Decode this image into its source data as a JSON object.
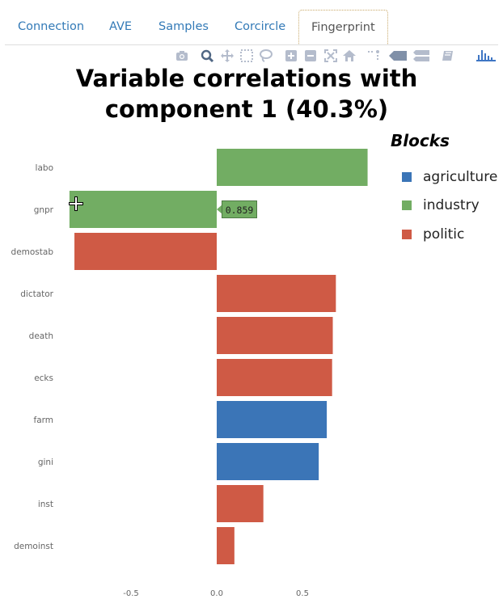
{
  "tabs": [
    {
      "label": "Connection",
      "active": false
    },
    {
      "label": "AVE",
      "active": false
    },
    {
      "label": "Samples",
      "active": false
    },
    {
      "label": "Corcircle",
      "active": false
    },
    {
      "label": "Fingerprint",
      "active": true
    }
  ],
  "modebar": {
    "icons": [
      "camera-icon",
      "zoom-icon",
      "pan-icon",
      "box-select-icon",
      "lasso-icon",
      "zoom-in-icon",
      "zoom-out-icon",
      "autoscale-icon",
      "reset-axes-icon",
      "spike-lines-icon",
      "hover-closest-icon",
      "hover-compare-icon",
      "plotly-edit-icon",
      "plotly-logo-icon"
    ]
  },
  "chart": {
    "title_line1": "Variable correlations with",
    "title_line2": "component 1 (40.3%)",
    "legend_title": "Blocks",
    "legend": [
      {
        "name": "agriculture",
        "color": "#3b75b7"
      },
      {
        "name": "industry",
        "color": "#72ad63"
      },
      {
        "name": "politic",
        "color": "#cf5a45"
      }
    ],
    "hover_label": "0.859"
  },
  "chart_data": {
    "type": "bar",
    "orientation": "horizontal",
    "title": "Variable correlations with component 1 (40.3%)",
    "categories": [
      "labo",
      "gnpr",
      "demostab",
      "dictator",
      "death",
      "ecks",
      "farm",
      "gini",
      "inst",
      "demoinst"
    ],
    "values": [
      0.88,
      -0.859,
      -0.83,
      0.695,
      0.677,
      0.673,
      0.642,
      0.595,
      0.272,
      0.103
    ],
    "blocks": [
      "industry",
      "industry",
      "politic",
      "politic",
      "politic",
      "politic",
      "agriculture",
      "agriculture",
      "politic",
      "politic"
    ],
    "colors": {
      "agriculture": "#3b75b7",
      "industry": "#72ad63",
      "politic": "#cf5a45"
    },
    "xticks": [
      -0.5,
      0.0,
      0.5
    ],
    "xtick_labels": [
      "-0.5",
      "0.0",
      "0.5"
    ],
    "legend_title": "Blocks",
    "legend_position": "top-right",
    "grid": false
  }
}
